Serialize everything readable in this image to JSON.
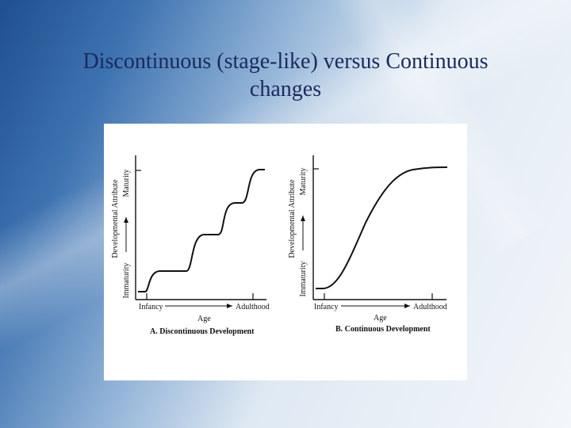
{
  "slide": {
    "title_line1": "Discontinuous (stage-like) versus Continuous",
    "title_line2": "changes"
  },
  "figure": {
    "panel_a": {
      "y_axis_label": "Developmental Attribute",
      "y_low": "Immaturity",
      "y_high": "Maturity",
      "x_low": "Infancy",
      "x_high": "Adulthood",
      "x_label": "Age",
      "caption": "A. Discontinuous Development"
    },
    "panel_b": {
      "y_axis_label": "Developmental Attribute",
      "y_low": "Immaturity",
      "y_high": "Maturity",
      "x_low": "Infancy",
      "x_high": "Adulthood",
      "x_label": "Age",
      "caption": "B. Continuous Development"
    }
  },
  "colors": {
    "title": "#1a2a5e",
    "line": "#111111"
  }
}
